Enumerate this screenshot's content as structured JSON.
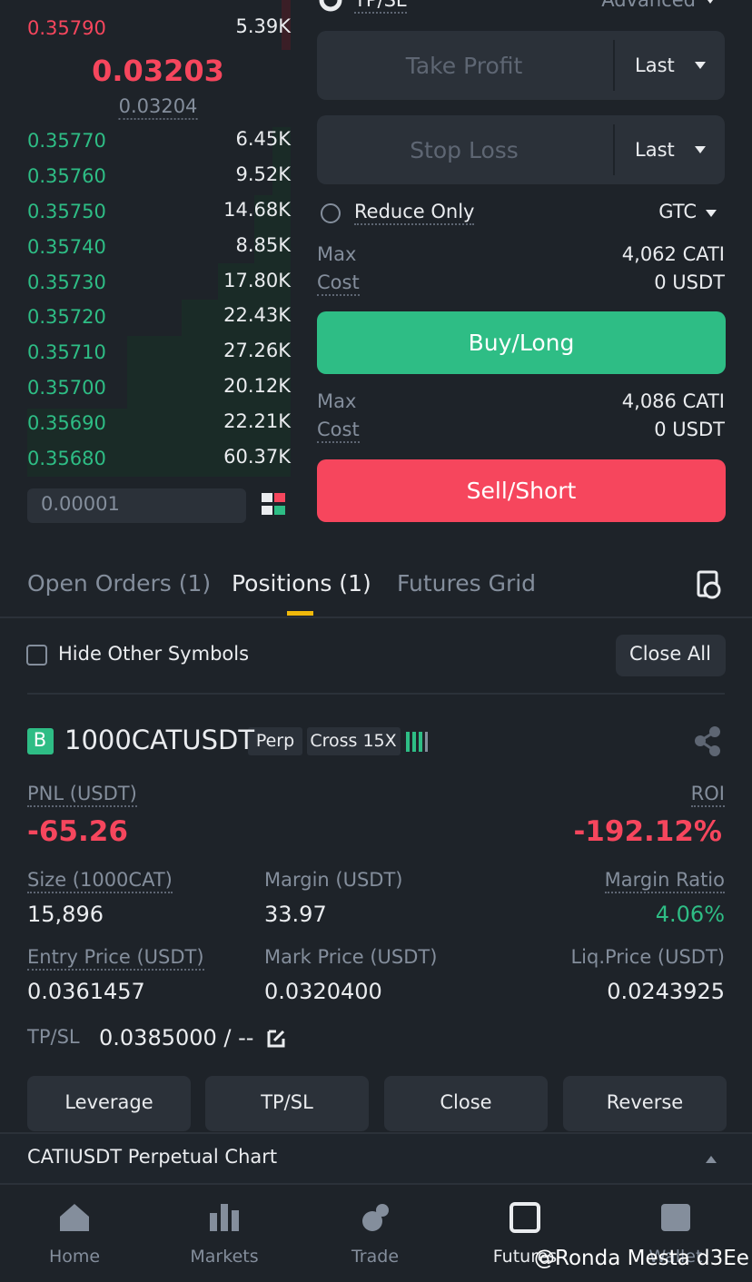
{
  "order_book": {
    "asks": [
      {
        "price": "0.35790",
        "qty": "5.39K"
      }
    ],
    "last_price": "0.03203",
    "mark_price": "0.03204",
    "bids": [
      {
        "price": "0.35770",
        "qty": "6.45K"
      },
      {
        "price": "0.35760",
        "qty": "9.52K"
      },
      {
        "price": "0.35750",
        "qty": "14.68K"
      },
      {
        "price": "0.35740",
        "qty": "8.85K"
      },
      {
        "price": "0.35730",
        "qty": "17.80K"
      },
      {
        "price": "0.35720",
        "qty": "22.43K"
      },
      {
        "price": "0.35710",
        "qty": "27.26K"
      },
      {
        "price": "0.35700",
        "qty": "20.12K"
      },
      {
        "price": "0.35690",
        "qty": "22.21K"
      },
      {
        "price": "0.35680",
        "qty": "60.37K"
      }
    ],
    "precision": "0.00001"
  },
  "order_form": {
    "tpsl_label": "TP/SL",
    "mode": "Advanced",
    "take_profit": {
      "placeholder": "Take Profit",
      "trigger": "Last"
    },
    "stop_loss": {
      "placeholder": "Stop Loss",
      "trigger": "Last"
    },
    "reduce_only": "Reduce Only",
    "time_in_force": "GTC",
    "buy": {
      "max_label": "Max",
      "max_value": "4,062 CATI",
      "cost_label": "Cost",
      "cost_value": "0 USDT",
      "button": "Buy/Long"
    },
    "sell": {
      "max_label": "Max",
      "max_value": "4,086 CATI",
      "cost_label": "Cost",
      "cost_value": "0 USDT",
      "button": "Sell/Short"
    }
  },
  "tabs": [
    "Open Orders (1)",
    "Positions (1)",
    "Futures Grid"
  ],
  "hide_other": "Hide Other Symbols",
  "close_all": "Close All",
  "position": {
    "badge": "B",
    "symbol": "1000CATUSDT",
    "tags": [
      "Perp",
      "Cross 15X"
    ],
    "pnl_label": "PNL (USDT)",
    "pnl": "-65.26",
    "roi_label": "ROI",
    "roi": "-192.12%",
    "fields": [
      {
        "label": "Size (1000CAT)",
        "value": "15,896"
      },
      {
        "label": "Margin (USDT)",
        "value": "33.97"
      },
      {
        "label": "Margin Ratio",
        "value": "4.06%"
      },
      {
        "label": "Entry Price (USDT)",
        "value": "0.0361457"
      },
      {
        "label": "Mark Price (USDT)",
        "value": "0.0320400"
      },
      {
        "label": "Liq.Price (USDT)",
        "value": "0.0243925"
      }
    ],
    "tpsl_label": "TP/SL",
    "tpsl_value": "0.0385000 / --",
    "buttons": [
      "Leverage",
      "TP/SL",
      "Close",
      "Reverse"
    ]
  },
  "chart_bar": "CATIUSDT Perpetual  Chart",
  "nav": [
    "Home",
    "Markets",
    "Trade",
    "Futures",
    "Wallet"
  ],
  "watermark": "@Ronda Mesta d3Ee"
}
